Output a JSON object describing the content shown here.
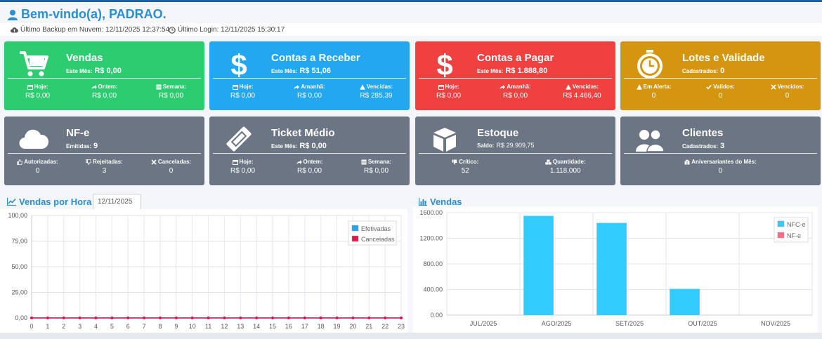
{
  "welcome": "Bem-vindo(a), PADRAO.",
  "info": {
    "backup": "Último Backup em Nuvem: 12/11/2025 12:37:54",
    "login": "Último Login: 12/11/2025 15:30:17"
  },
  "cards": {
    "vendas": {
      "title": "Vendas",
      "sub_label": "Este Mês:",
      "sub_value": "R$ 0,00",
      "stats": [
        {
          "label": "Hoje:",
          "value": "R$ 0,00"
        },
        {
          "label": "Ontem:",
          "value": "R$ 0,00"
        },
        {
          "label": "Semana:",
          "value": "R$ 0,00"
        }
      ]
    },
    "receber": {
      "title": "Contas a Receber",
      "sub_label": "Este Mês:",
      "sub_value": "R$ 51,06",
      "stats": [
        {
          "label": "Hoje:",
          "value": "R$ 0,00"
        },
        {
          "label": "Amanhã:",
          "value": "R$ 0,00"
        },
        {
          "label": "Vencidas:",
          "value": "R$ 285,39"
        }
      ]
    },
    "pagar": {
      "title": "Contas a Pagar",
      "sub_label": "Este Mês:",
      "sub_value": "R$ 1.888,80",
      "stats": [
        {
          "label": "Hoje:",
          "value": "R$ 0,00"
        },
        {
          "label": "Amanhã:",
          "value": "R$ 0,00"
        },
        {
          "label": "Vencidas:",
          "value": "R$ 4.466,40"
        }
      ]
    },
    "lotes": {
      "title": "Lotes e Validade",
      "sub_label": "Cadastrados:",
      "sub_value": "0",
      "stats": [
        {
          "label": "Em Alerta:",
          "value": "0"
        },
        {
          "label": "Validos:",
          "value": "0"
        },
        {
          "label": "Vencidos:",
          "value": "0"
        }
      ]
    },
    "nfe": {
      "title": "NF-e",
      "sub_label": "Emitidas:",
      "sub_value": "9",
      "stats": [
        {
          "label": "Autorizadas:",
          "value": "0"
        },
        {
          "label": "Rejeitadas:",
          "value": "3"
        },
        {
          "label": "Canceladas:",
          "value": "0"
        }
      ]
    },
    "ticket": {
      "title": "Ticket Médio",
      "sub_label": "Este Mês:",
      "sub_value": "R$ 0,00",
      "stats": [
        {
          "label": "Hoje:",
          "value": "R$ 0,00"
        },
        {
          "label": "Ontem:",
          "value": "R$ 0,00"
        },
        {
          "label": "Semana:",
          "value": "R$ 0,00"
        }
      ]
    },
    "estoque": {
      "title": "Estoque",
      "sub_label": "Saldo:",
      "sub_value": "R$ 29.909,75",
      "stats": [
        {
          "label": "Crítico:",
          "value": "52"
        },
        {
          "label": "Quantidade:",
          "value": "1.118,000"
        }
      ]
    },
    "clientes": {
      "title": "Clientes",
      "sub_label": "Cadastrados:",
      "sub_value": "3",
      "stats": [
        {
          "label": "Aniversariantes do Mês:",
          "value": "0"
        }
      ]
    }
  },
  "colors": {
    "green": "#2ecc71",
    "blue": "#22a7f0",
    "red": "#f04141",
    "gold": "#d4960e",
    "slate": "#6b7583",
    "efetivadas": "#22a7f0",
    "canceladas": "#e0174f",
    "nfce": "#33ccff",
    "nfe": "#ff6b8a"
  },
  "hora_panel": {
    "title": "Vendas por Hora",
    "date": "12/11/2025"
  },
  "vendas_panel": {
    "title": "Vendas"
  },
  "chart_data": [
    {
      "type": "line",
      "title": "Vendas por Hora",
      "x": [
        0,
        1,
        2,
        3,
        4,
        5,
        6,
        7,
        8,
        9,
        10,
        11,
        12,
        13,
        14,
        15,
        16,
        17,
        18,
        19,
        20,
        21,
        22,
        23
      ],
      "ylim": [
        0,
        100
      ],
      "yticks": [
        "100,00",
        "75,00",
        "50,00",
        "25,00",
        "0,00"
      ],
      "grid": true,
      "legend": "top-right",
      "series": [
        {
          "name": "Efetivadas",
          "values": [
            0,
            0,
            0,
            0,
            0,
            0,
            0,
            0,
            0,
            0,
            0,
            0,
            0,
            0,
            0,
            0,
            0,
            0,
            0,
            0,
            0,
            0,
            0,
            0
          ]
        },
        {
          "name": "Canceladas",
          "values": [
            0,
            0,
            0,
            0,
            0,
            0,
            0,
            0,
            0,
            0,
            0,
            0,
            0,
            0,
            0,
            0,
            0,
            0,
            0,
            0,
            0,
            0,
            0,
            0
          ]
        }
      ]
    },
    {
      "type": "bar",
      "title": "Vendas",
      "categories": [
        "JUL/2025",
        "AGO/2025",
        "SET/2025",
        "OUT/2025",
        "NOV/2025"
      ],
      "ylim": [
        0,
        1600
      ],
      "yticks": [
        "1600.00",
        "1200.00",
        "800.00",
        "400.00",
        "0.00"
      ],
      "grid": true,
      "legend": "top-right",
      "series": [
        {
          "name": "NFC-e",
          "values": [
            0,
            1550,
            1440,
            410,
            0
          ]
        },
        {
          "name": "NF-e",
          "values": [
            0,
            0,
            0,
            0,
            0
          ]
        }
      ]
    }
  ]
}
